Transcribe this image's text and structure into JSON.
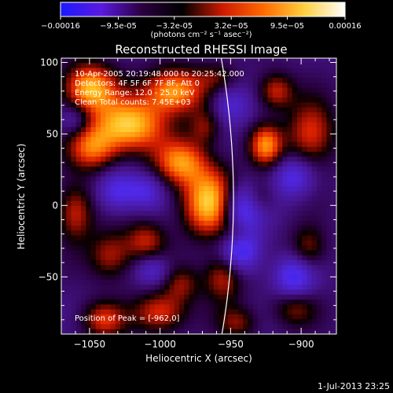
{
  "colorbar": {
    "tick_labels": [
      "-0.00016",
      "-9.5e-05",
      "-3.2e-05",
      "3.2e-05",
      "9.5e-05",
      "0.00016"
    ],
    "unit_label": "(photons cm⁻² s⁻¹ asec⁻²)",
    "range": [
      -0.00016,
      0.00016
    ],
    "colors": [
      "#1a1aff",
      "#5a1ae0",
      "#2a0040",
      "#000000",
      "#d01a00",
      "#ff6a00",
      "#ffd040",
      "#ffffff"
    ]
  },
  "chart_data": {
    "type": "heatmap",
    "title": "Reconstructed RHESSI Image",
    "xlabel": "Heliocentric X (arcsec)",
    "ylabel": "Heliocentric Y (arcsec)",
    "xlim": [
      -1070,
      -875
    ],
    "ylim": [
      -90,
      103
    ],
    "x_ticks": [
      -1050,
      -1000,
      -950,
      -900
    ],
    "y_ticks": [
      -50,
      0,
      50,
      100
    ],
    "x_tick_labels": [
      "−1050",
      "−1000",
      "−950",
      "−900"
    ],
    "y_tick_labels": [
      "−50",
      "0",
      "50",
      "100"
    ],
    "annotations": [
      "10-Apr-2005 20:19:48.000 to 20:25:42.000",
      "Detectors: 4F 5F 6F 7F 8F, Att 0",
      "Energy Range: 12.0 - 25.0 keV",
      "Clean    Total counts: 7.45E+03"
    ],
    "peak_label": "Position of Peak = [-962,0]",
    "sources": [
      {
        "x": -963,
        "y": 2,
        "amp": 1.0,
        "sx": 14,
        "sy": 16
      },
      {
        "x": -1022,
        "y": 56,
        "amp": 0.9,
        "sx": 18,
        "sy": 13
      },
      {
        "x": -1050,
        "y": 82,
        "amp": 0.85,
        "sx": 13,
        "sy": 12
      },
      {
        "x": -990,
        "y": 80,
        "amp": 0.8,
        "sx": 15,
        "sy": 11
      },
      {
        "x": -985,
        "y": 30,
        "amp": 0.7,
        "sx": 13,
        "sy": 11
      },
      {
        "x": -1048,
        "y": 40,
        "amp": 0.6,
        "sx": 12,
        "sy": 11
      },
      {
        "x": -1060,
        "y": -5,
        "amp": 0.5,
        "sx": 9,
        "sy": 14
      },
      {
        "x": -1035,
        "y": -35,
        "amp": 0.45,
        "sx": 11,
        "sy": 12
      },
      {
        "x": -1010,
        "y": -25,
        "amp": 0.45,
        "sx": 10,
        "sy": 10
      },
      {
        "x": -1000,
        "y": -75,
        "amp": 0.55,
        "sx": 13,
        "sy": 10
      },
      {
        "x": -1040,
        "y": -80,
        "amp": 0.5,
        "sx": 11,
        "sy": 9
      },
      {
        "x": -985,
        "y": -55,
        "amp": 0.35,
        "sx": 9,
        "sy": 9
      },
      {
        "x": -955,
        "y": -50,
        "amp": 0.5,
        "sx": 10,
        "sy": 12
      },
      {
        "x": -945,
        "y": -82,
        "amp": 0.35,
        "sx": 10,
        "sy": 8
      },
      {
        "x": -925,
        "y": 42,
        "amp": 0.7,
        "sx": 8,
        "sy": 10
      },
      {
        "x": -893,
        "y": 50,
        "amp": 0.55,
        "sx": 12,
        "sy": 16
      },
      {
        "x": -918,
        "y": 80,
        "amp": 0.5,
        "sx": 9,
        "sy": 9
      },
      {
        "x": -930,
        "y": 5,
        "amp": 0.35,
        "sx": 8,
        "sy": 9
      },
      {
        "x": -895,
        "y": -30,
        "amp": 0.4,
        "sx": 9,
        "sy": 11
      },
      {
        "x": -905,
        "y": -70,
        "amp": 0.45,
        "sx": 11,
        "sy": 10
      },
      {
        "x": -945,
        "y": -20,
        "amp": 0.3,
        "sx": 8,
        "sy": 7
      },
      {
        "x": -968,
        "y": 55,
        "amp": 0.35,
        "sx": 8,
        "sy": 9
      },
      {
        "x": -960,
        "y": 90,
        "amp": 0.25,
        "sx": 10,
        "sy": 7
      },
      {
        "x": -943,
        "y": 0,
        "amp": -0.75,
        "sx": 12,
        "sy": 12
      },
      {
        "x": -943,
        "y": -30,
        "amp": -0.65,
        "sx": 10,
        "sy": 12
      },
      {
        "x": -905,
        "y": -52,
        "amp": -0.6,
        "sx": 10,
        "sy": 12
      },
      {
        "x": -1030,
        "y": 10,
        "amp": -0.45,
        "sx": 10,
        "sy": 10
      },
      {
        "x": -1010,
        "y": 10,
        "amp": -0.35,
        "sx": 9,
        "sy": 9
      },
      {
        "x": -905,
        "y": 20,
        "amp": -0.45,
        "sx": 10,
        "sy": 10
      },
      {
        "x": -1060,
        "y": 60,
        "amp": -0.3,
        "sx": 8,
        "sy": 8
      },
      {
        "x": -1005,
        "y": -45,
        "amp": -0.35,
        "sx": 9,
        "sy": 8
      },
      {
        "x": -950,
        "y": 70,
        "amp": -0.35,
        "sx": 10,
        "sy": 10
      }
    ]
  },
  "footer": {
    "timestamp": "1-Jul-2013 23:25"
  }
}
